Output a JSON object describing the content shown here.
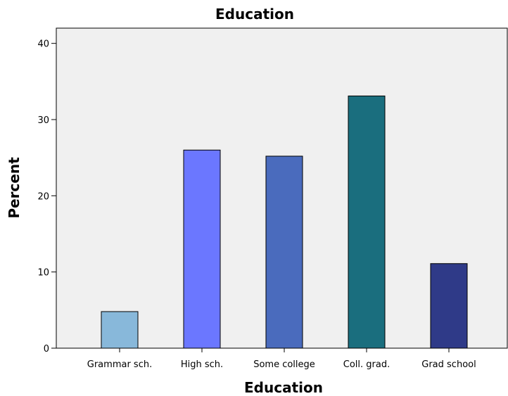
{
  "chart_data": {
    "type": "bar",
    "title": "Education",
    "xlabel": "Education",
    "ylabel": "Percent",
    "categories": [
      "Grammar sch.",
      "High sch.",
      "Some college",
      "Coll. grad.",
      "Grad school"
    ],
    "values": [
      4.8,
      26.0,
      25.2,
      33.1,
      11.1
    ],
    "colors": [
      "#88b8da",
      "#6b77ff",
      "#4a6bbd",
      "#1a6e7e",
      "#2f3a88"
    ],
    "ylim": [
      0,
      42
    ],
    "yticks": [
      0,
      10,
      20,
      30,
      40
    ],
    "grid": false,
    "legend": "none"
  }
}
